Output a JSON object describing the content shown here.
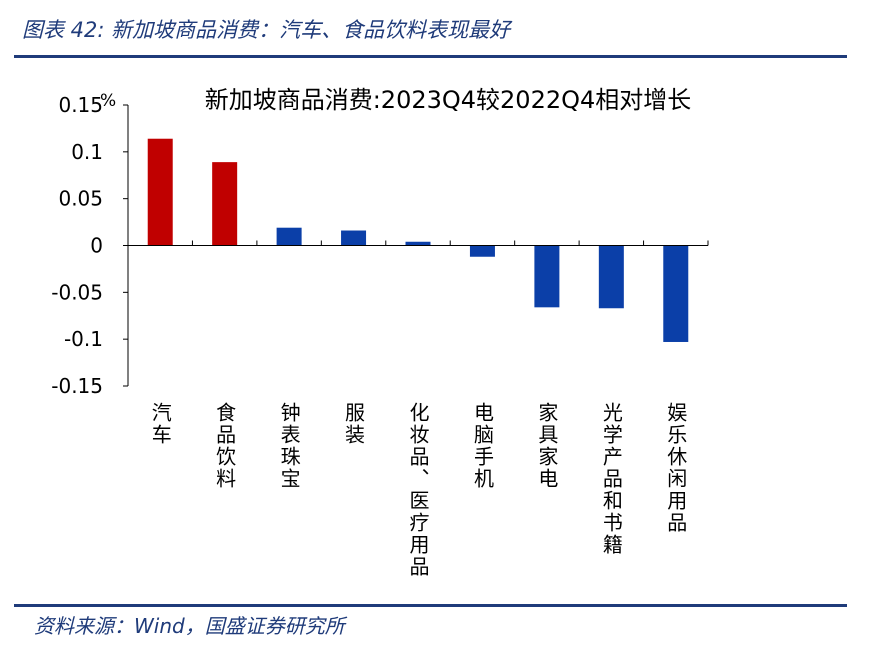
{
  "figure_title": "图表 42:  新加坡商品消费：汽车、食品饮料表现最好",
  "source_note": "资料来源：Wind，国盛证券研究所",
  "chart_data": {
    "type": "bar",
    "title": "新加坡商品消费:2023Q4较2022Q4相对增长",
    "unit_label": "%",
    "categories": [
      "汽车",
      "食品饮料",
      "钟表珠宝",
      "服装",
      "化妆品、医疗用品",
      "电脑手机",
      "家具家电",
      "光学产品和书籍",
      "娱乐休闲用品"
    ],
    "values": [
      0.114,
      0.089,
      0.019,
      0.016,
      0.004,
      -0.012,
      -0.066,
      -0.067,
      -0.103
    ],
    "bar_colors": [
      "#c00000",
      "#c00000",
      "#0b3fa8",
      "#0b3fa8",
      "#0b3fa8",
      "#0b3fa8",
      "#0b3fa8",
      "#0b3fa8",
      "#0b3fa8"
    ],
    "y_ticks": [
      "0.15",
      "0.1",
      "0.05",
      "0",
      "-0.05",
      "-0.1",
      "-0.15"
    ],
    "ylim": [
      -0.15,
      0.15
    ],
    "grid": false,
    "legend": "none"
  }
}
